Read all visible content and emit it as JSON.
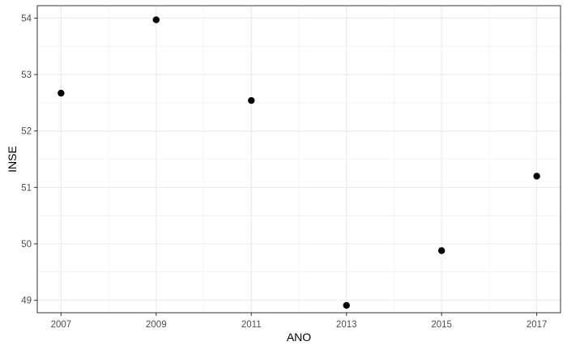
{
  "chart_data": {
    "type": "scatter",
    "title": "",
    "xlabel": "ANO",
    "ylabel": "INSE",
    "x": [
      2007,
      2009,
      2011,
      2013,
      2015,
      2017
    ],
    "y": [
      52.67,
      53.97,
      52.54,
      48.91,
      49.88,
      51.2
    ],
    "xlim": [
      2006.5,
      2017.5
    ],
    "ylim": [
      48.78,
      54.22
    ],
    "x_ticks": [
      2007,
      2009,
      2011,
      2013,
      2015,
      2017
    ],
    "x_tick_labels": [
      "2007",
      "2009",
      "2011",
      "2013",
      "2015",
      "2017"
    ],
    "y_ticks": [
      49,
      50,
      51,
      52,
      53,
      54
    ],
    "y_tick_labels": [
      "49",
      "50",
      "51",
      "52",
      "53",
      "54"
    ],
    "grid": true,
    "point_color": "#000000",
    "grid_color": "#ebebeb",
    "panel_border_color": "#333333"
  }
}
